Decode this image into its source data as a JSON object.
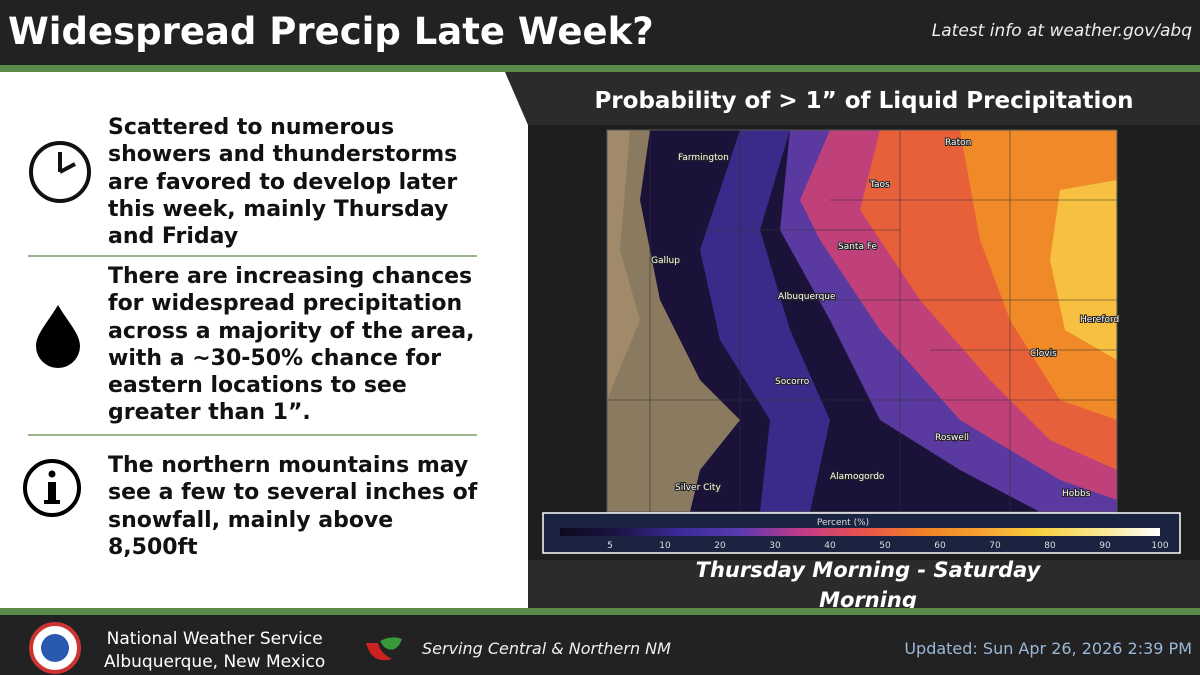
{
  "header": {
    "title": "Widespread Precip Late Week?",
    "link": "Latest info at weather.gov/abq"
  },
  "bullets": [
    {
      "lines": [
        "Scattered to numerous",
        "showers and thunderstorms",
        "are favored to develop later",
        "this week, mainly Thursday",
        "and Friday"
      ]
    },
    {
      "lines": [
        "There are increasing chances",
        "for widespread precipitation",
        "across a majority of the area,",
        "with a ~30-50% chance for",
        "eastern locations to see",
        "greater than 1”."
      ]
    },
    {
      "lines": [
        "The northern mountains may",
        "see a few to several inches of",
        "snowfall, mainly above",
        "8,500ft"
      ]
    }
  ],
  "map": {
    "title": "Probability of > 1” of Liquid Precipitation",
    "cities": [
      "Farmington",
      "Raton",
      "Taos",
      "Santa Fe",
      "Gallup",
      "Albuquerque",
      "Hereford",
      "Clovis",
      "Socorro",
      "Roswell",
      "Alamogordo",
      "Silver City",
      "Hobbs"
    ],
    "legend": {
      "title": "Percent (%)",
      "ticks": [
        5,
        10,
        20,
        30,
        40,
        50,
        60,
        70,
        80,
        90,
        100
      ]
    },
    "period": {
      "lines": [
        "Thursday Morning - Saturday",
        "Morning"
      ]
    }
  },
  "footer": {
    "office": [
      "National Weather Service",
      "Albuquerque, New Mexico"
    ],
    "tagline": "Serving Central & Northern NM",
    "updated": "Updated: Sun Apr 26, 2026 2:39 PM"
  }
}
